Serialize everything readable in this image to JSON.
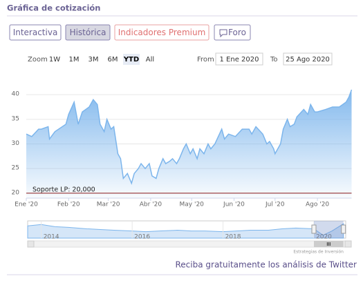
{
  "header": {
    "title": "Gráfica de cotización"
  },
  "tabs": [
    "Interactiva",
    "Histórica",
    "Indicadores Premium",
    "Foro"
  ],
  "active_tab": 1,
  "range_selector": {
    "label": "Zoom",
    "buttons": [
      "1W",
      "1M",
      "3M",
      "6M",
      "YTD",
      "All"
    ],
    "active": 4,
    "from_label": "From",
    "from": "1 Ene 2020",
    "to_label": "To",
    "to": "25 Ago 2020"
  },
  "chart_data": {
    "type": "area",
    "x": [
      0,
      4,
      9,
      11,
      16,
      17,
      21,
      29,
      31,
      35,
      38,
      41,
      46,
      49,
      52,
      54,
      57,
      59,
      62,
      64,
      67,
      69,
      71,
      74,
      77,
      79,
      82,
      84,
      87,
      90,
      92,
      95,
      97,
      100,
      102,
      105,
      107,
      110,
      112,
      115,
      117,
      120,
      122,
      125,
      127,
      130,
      133,
      135,
      138,
      143,
      145,
      148,
      153,
      158,
      163,
      165,
      168,
      173,
      176,
      178,
      181,
      182,
      186,
      188,
      191,
      193,
      196,
      198,
      203,
      206,
      208,
      211,
      213,
      219,
      224,
      229,
      234,
      236,
      238
    ],
    "series": [
      {
        "color": "#7cb5ec",
        "values": [
          32,
          31.5,
          33,
          33,
          33.5,
          31,
          32.5,
          34,
          36,
          38.5,
          34,
          36.5,
          37.5,
          39,
          38,
          34,
          32.5,
          35,
          33,
          33.5,
          28,
          27,
          23,
          24,
          22,
          24,
          25,
          26,
          25,
          26,
          23.5,
          23,
          25,
          27,
          26,
          26.5,
          27,
          26,
          27,
          29,
          30,
          28,
          29,
          27,
          29,
          28,
          30,
          29,
          30,
          33,
          31,
          32,
          31.5,
          33,
          33,
          32,
          33.5,
          32,
          30,
          30.5,
          29,
          28,
          30,
          33,
          35,
          33.5,
          34,
          35.5,
          37,
          36,
          38,
          36.5,
          36.5,
          37,
          37.5,
          37.5,
          38.5,
          39.5,
          41
        ]
      }
    ],
    "xlim": [
      0,
      238
    ],
    "xticks": [
      {
        "value": 0,
        "label": "Ene '20"
      },
      {
        "value": 31,
        "label": "Feb '20"
      },
      {
        "value": 60,
        "label": "Mar '20"
      },
      {
        "value": 91,
        "label": "Abr '20"
      },
      {
        "value": 121,
        "label": "May '20"
      },
      {
        "value": 152,
        "label": "Jun '20"
      },
      {
        "value": 182,
        "label": "Jul '20"
      },
      {
        "value": 213,
        "label": "Ago '20"
      }
    ],
    "ylim": [
      19,
      41.7
    ],
    "yticks": [
      20,
      25,
      30,
      35,
      40
    ],
    "grid": true,
    "annotations": [
      {
        "text": "Soporte LP: 20,000",
        "value": 20,
        "color": "#8b1a1a"
      }
    ]
  },
  "navigator": {
    "x": [
      2013.7,
      2014,
      2014.3,
      2014.6,
      2015,
      2015.3,
      2015.6,
      2016,
      2016.3,
      2016.6,
      2017,
      2017.3,
      2017.6,
      2018,
      2018.3,
      2018.6,
      2019,
      2019.3,
      2019.6,
      2020,
      2020.2,
      2020.4,
      2020.65
    ],
    "values": [
      37,
      39,
      36,
      35,
      33,
      32,
      31,
      30,
      29,
      30,
      31,
      30,
      30,
      29,
      30,
      31,
      31,
      33,
      34,
      33,
      24,
      30,
      40
    ],
    "xlim": [
      2013.7,
      2020.7
    ],
    "ylim": [
      20,
      44
    ],
    "xticks": [
      2014,
      2016,
      2018,
      2020
    ],
    "selection": [
      2020,
      2020.65
    ]
  },
  "credit": "Estrategias de Inversión",
  "footer": "Reciba gratuitamente los análisis de Twitter"
}
